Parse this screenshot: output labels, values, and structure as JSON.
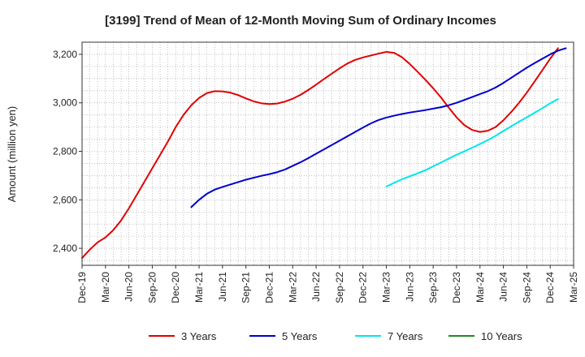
{
  "chart_data": {
    "type": "line",
    "title": "[3199]  Trend of Mean of 12-Month Moving Sum of Ordinary Incomes",
    "xlabel": "",
    "ylabel": "Amount (million yen)",
    "ylim": [
      2330,
      3250
    ],
    "yticks": [
      2400,
      2600,
      2800,
      3000,
      3200
    ],
    "ytick_labels": [
      "2,400",
      "2,600",
      "2,800",
      "3,000",
      "3,200"
    ],
    "xtick_labels": [
      "Dec-19",
      "Mar-20",
      "Jun-20",
      "Sep-20",
      "Dec-20",
      "Mar-21",
      "Jun-21",
      "Sep-21",
      "Dec-21",
      "Mar-22",
      "Jun-22",
      "Sep-22",
      "Dec-22",
      "Mar-23",
      "Jun-23",
      "Sep-23",
      "Dec-23",
      "Mar-24",
      "Jun-24",
      "Sep-24",
      "Dec-24",
      "Mar-25"
    ],
    "x_month_range": [
      0,
      63
    ],
    "grid": true,
    "legend_position": "bottom",
    "series": [
      {
        "name": "3 Years",
        "color": "#e00000",
        "start_month": 0,
        "values": [
          2360,
          2395,
          2425,
          2445,
          2475,
          2515,
          2565,
          2620,
          2675,
          2730,
          2785,
          2840,
          2900,
          2950,
          2990,
          3020,
          3040,
          3048,
          3047,
          3042,
          3032,
          3018,
          3006,
          2998,
          2995,
          2997,
          3005,
          3017,
          3033,
          3053,
          3075,
          3098,
          3120,
          3142,
          3162,
          3177,
          3187,
          3195,
          3203,
          3210,
          3206,
          3188,
          3160,
          3128,
          3095,
          3060,
          3022,
          2980,
          2940,
          2908,
          2888,
          2880,
          2885,
          2900,
          2928,
          2962,
          3000,
          3042,
          3088,
          3135,
          3182,
          3225
        ]
      },
      {
        "name": "5 Years",
        "color": "#0000cc",
        "start_month": 14,
        "values": [
          2570,
          2600,
          2625,
          2642,
          2653,
          2663,
          2673,
          2683,
          2691,
          2699,
          2706,
          2714,
          2725,
          2740,
          2755,
          2772,
          2790,
          2808,
          2826,
          2844,
          2862,
          2880,
          2898,
          2915,
          2929,
          2939,
          2947,
          2954,
          2960,
          2965,
          2970,
          2976,
          2982,
          2990,
          3000,
          3012,
          3024,
          3036,
          3048,
          3063,
          3082,
          3103,
          3124,
          3145,
          3164,
          3182,
          3200,
          3215,
          3225
        ]
      },
      {
        "name": "7 Years",
        "color": "#00e5ee",
        "start_month": 39,
        "values": [
          2655,
          2670,
          2685,
          2697,
          2709,
          2722,
          2738,
          2754,
          2770,
          2786,
          2800,
          2815,
          2830,
          2846,
          2864,
          2884,
          2903,
          2922,
          2940,
          2959,
          2978,
          2998,
          3016
        ]
      },
      {
        "name": "10 Years",
        "color": "#1f8a1f",
        "start_month": 0,
        "values": []
      }
    ]
  }
}
